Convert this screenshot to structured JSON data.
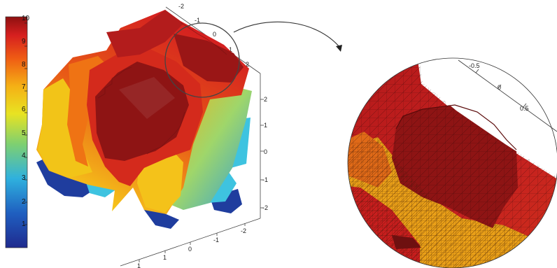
{
  "colorbar": {
    "ticks": [
      "1",
      "2",
      "3",
      "4",
      "5",
      "6",
      "7",
      "8",
      "9",
      "10"
    ]
  },
  "main_plot": {
    "z_ticks": [
      "2",
      "1",
      "0",
      "-1",
      "-2"
    ],
    "bottom_ticks": [
      "1",
      "1",
      "0",
      "-1",
      "-2"
    ],
    "top_ticks": [
      "-2",
      "-1",
      "0",
      "1",
      "2"
    ]
  },
  "zoom_view": {
    "ticks": [
      "-0.5",
      "0",
      "0.5"
    ]
  },
  "colors": {
    "dark_red": "#8e1414",
    "red": "#c81e1e",
    "orange": "#f07a12",
    "yellow": "#f5c918",
    "cyan": "#3ec3e0",
    "blue": "#1f3d9e"
  }
}
